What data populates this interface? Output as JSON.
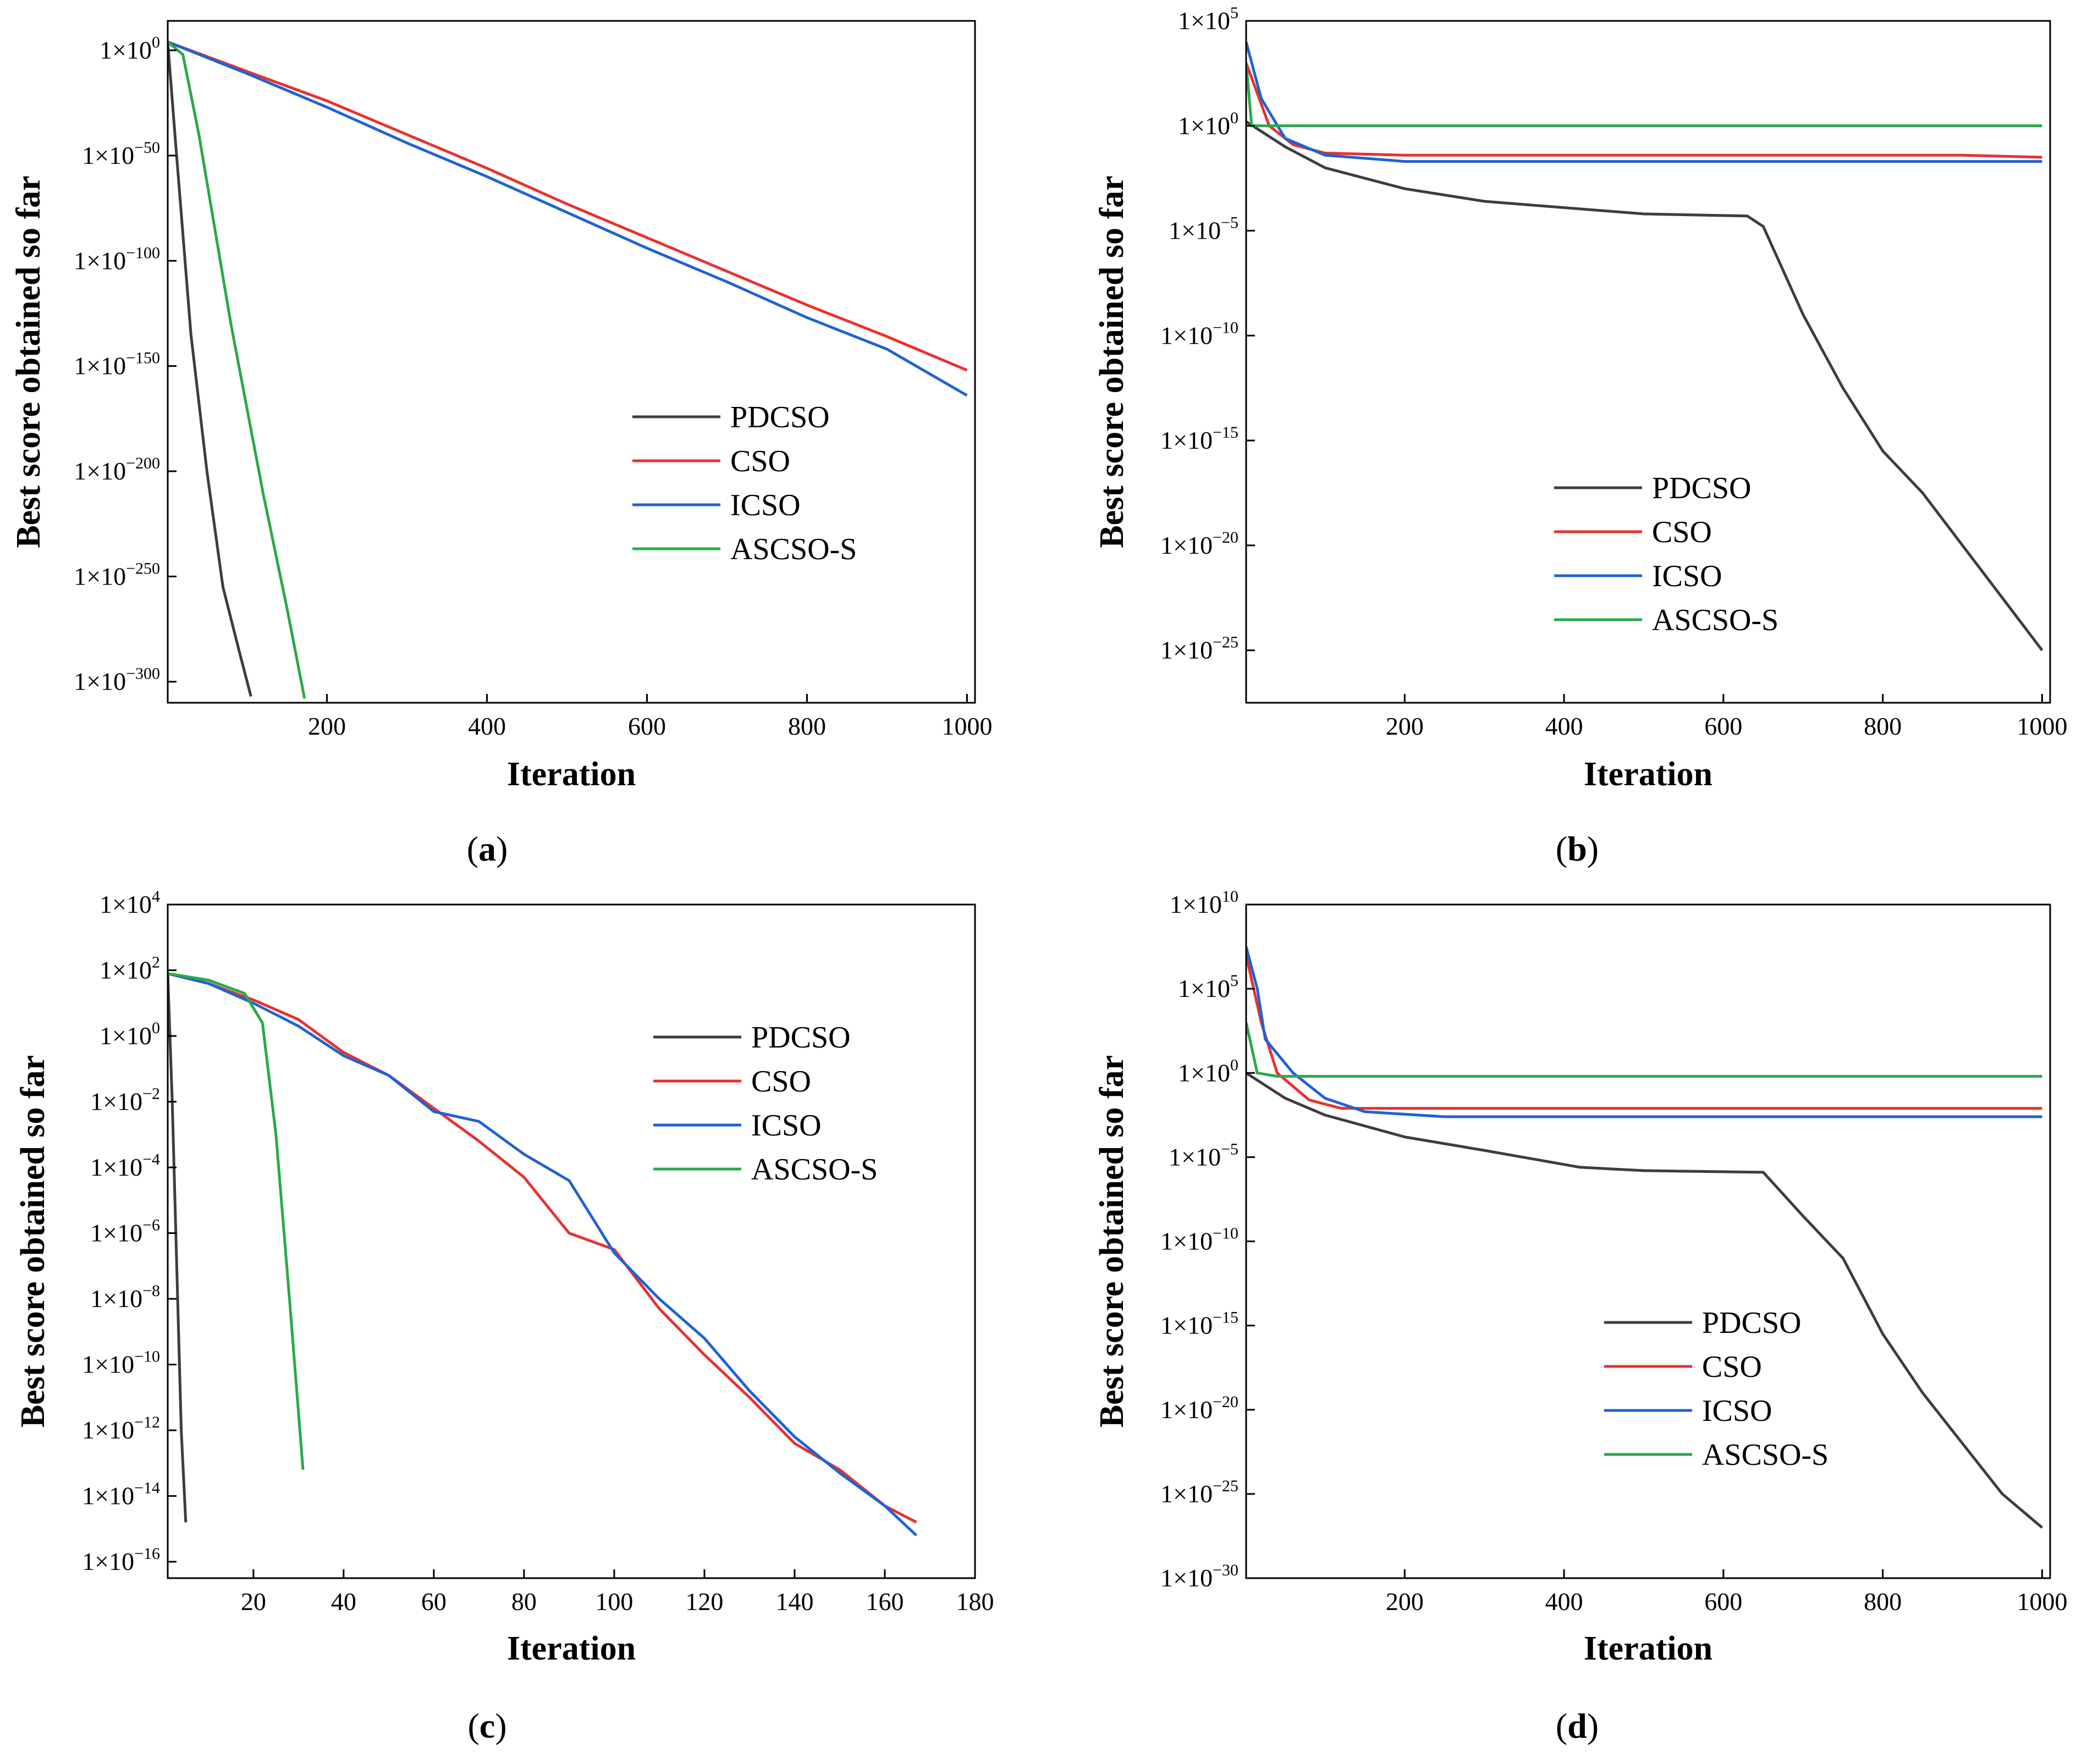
{
  "colors": {
    "PDCSO": "#3d3d3d",
    "CSO": "#e8312f",
    "ICSO": "#1f62d4",
    "ASCSO-S": "#2aa84a"
  },
  "chart_data": [
    {
      "id": "a",
      "type": "line",
      "caption_open": "(",
      "caption_letter": "a",
      "caption_close": ")",
      "xlabel": "Iteration",
      "ylabel": "Best score obtained so far",
      "xlim": [
        1,
        1010
      ],
      "ylim_log10": [
        -310,
        14
      ],
      "xticks": [
        200,
        400,
        600,
        800,
        1000
      ],
      "xtick_labels": [
        "200",
        "400",
        "600",
        "800",
        "1000"
      ],
      "yticks_log10": [
        0,
        -50,
        -100,
        -150,
        -200,
        -250,
        -300
      ],
      "ytick_labels": [
        "0",
        "−50",
        "−100",
        "−150",
        "−200",
        "−250",
        "−300"
      ],
      "tick_base": "1×10",
      "legend": [
        "PDCSO",
        "CSO",
        "ICSO",
        "ASCSO-S"
      ],
      "series": [
        {
          "name": "PDCSO",
          "points": [
            [
              1,
              4
            ],
            [
              10,
              -40
            ],
            [
              30,
              -135
            ],
            [
              50,
              -200
            ],
            [
              70,
              -255
            ],
            [
              90,
              -285
            ],
            [
              105,
              -307
            ]
          ]
        },
        {
          "name": "CSO",
          "points": [
            [
              1,
              4
            ],
            [
              100,
              -10
            ],
            [
              200,
              -24
            ],
            [
              300,
              -40
            ],
            [
              400,
              -56
            ],
            [
              500,
              -73
            ],
            [
              600,
              -89
            ],
            [
              700,
              -105
            ],
            [
              800,
              -121
            ],
            [
              900,
              -136
            ],
            [
              1000,
              -152
            ]
          ]
        },
        {
          "name": "ICSO",
          "points": [
            [
              1,
              4
            ],
            [
              100,
              -11
            ],
            [
              200,
              -27
            ],
            [
              300,
              -44
            ],
            [
              400,
              -60
            ],
            [
              500,
              -77
            ],
            [
              600,
              -94
            ],
            [
              700,
              -110
            ],
            [
              800,
              -127
            ],
            [
              900,
              -142
            ],
            [
              1000,
              -164
            ]
          ]
        },
        {
          "name": "ASCSO-S",
          "points": [
            [
              1,
              4
            ],
            [
              20,
              -2
            ],
            [
              40,
              -40
            ],
            [
              80,
              -130
            ],
            [
              120,
              -210
            ],
            [
              150,
              -265
            ],
            [
              172,
              -308
            ]
          ]
        }
      ]
    },
    {
      "id": "b",
      "type": "line",
      "caption_open": "(",
      "caption_letter": "b",
      "caption_close": ")",
      "xlabel": "Iteration",
      "ylabel": "Best score obtained so far",
      "xlim": [
        1,
        1010
      ],
      "ylim_log10": [
        -27.5,
        5
      ],
      "xticks": [
        200,
        400,
        600,
        800,
        1000
      ],
      "xtick_labels": [
        "200",
        "400",
        "600",
        "800",
        "1000"
      ],
      "yticks_log10": [
        5,
        0,
        -5,
        -10,
        -15,
        -20,
        -25
      ],
      "ytick_labels": [
        "5",
        "0",
        "−5",
        "−10",
        "−15",
        "−20",
        "−25"
      ],
      "tick_base": "1×10",
      "legend": [
        "PDCSO",
        "CSO",
        "ICSO",
        "ASCSO-S"
      ],
      "series": [
        {
          "name": "PDCSO",
          "points": [
            [
              1,
              0.2
            ],
            [
              50,
              -1
            ],
            [
              100,
              -2
            ],
            [
              200,
              -3
            ],
            [
              300,
              -3.6
            ],
            [
              400,
              -3.9
            ],
            [
              500,
              -4.2
            ],
            [
              630,
              -4.3
            ],
            [
              650,
              -4.8
            ],
            [
              700,
              -9
            ],
            [
              750,
              -12.5
            ],
            [
              800,
              -15.5
            ],
            [
              850,
              -17.5
            ],
            [
              900,
              -20
            ],
            [
              950,
              -22.5
            ],
            [
              1000,
              -25
            ]
          ]
        },
        {
          "name": "CSO",
          "points": [
            [
              1,
              3
            ],
            [
              30,
              0
            ],
            [
              60,
              -0.9
            ],
            [
              100,
              -1.3
            ],
            [
              200,
              -1.4
            ],
            [
              900,
              -1.4
            ],
            [
              1000,
              -1.5
            ]
          ]
        },
        {
          "name": "ICSO",
          "points": [
            [
              1,
              4
            ],
            [
              20,
              1.3
            ],
            [
              50,
              -0.6
            ],
            [
              100,
              -1.4
            ],
            [
              200,
              -1.7
            ],
            [
              1000,
              -1.7
            ]
          ]
        },
        {
          "name": "ASCSO-S",
          "points": [
            [
              1,
              3
            ],
            [
              8,
              0
            ],
            [
              20,
              0
            ],
            [
              1000,
              0
            ]
          ]
        }
      ]
    },
    {
      "id": "c",
      "type": "line",
      "caption_open": "(",
      "caption_letter": "c",
      "caption_close": ")",
      "xlabel": "Iteration",
      "ylabel": "Best score obtained so far",
      "xlim": [
        1,
        180
      ],
      "ylim_log10": [
        -16.5,
        4
      ],
      "xticks": [
        20,
        40,
        60,
        80,
        100,
        120,
        140,
        160,
        180
      ],
      "xtick_labels": [
        "20",
        "40",
        "60",
        "80",
        "100",
        "120",
        "140",
        "160",
        "180"
      ],
      "yticks_log10": [
        4,
        2,
        0,
        -2,
        -4,
        -6,
        -8,
        -10,
        -12,
        -14,
        -16
      ],
      "ytick_labels": [
        "4",
        "2",
        "0",
        "−2",
        "−4",
        "−6",
        "−8",
        "−10",
        "−12",
        "−14",
        "−16"
      ],
      "tick_base": "1×10",
      "legend": [
        "PDCSO",
        "CSO",
        "ICSO",
        "ASCSO-S"
      ],
      "series": [
        {
          "name": "PDCSO",
          "points": [
            [
              1,
              1.9
            ],
            [
              2,
              -2
            ],
            [
              3,
              -7
            ],
            [
              4,
              -12
            ],
            [
              5,
              -14.8
            ]
          ]
        },
        {
          "name": "CSO",
          "points": [
            [
              1,
              1.9
            ],
            [
              10,
              1.6
            ],
            [
              20,
              1.1
            ],
            [
              30,
              0.5
            ],
            [
              40,
              -0.5
            ],
            [
              50,
              -1.2
            ],
            [
              60,
              -2.2
            ],
            [
              70,
              -3.2
            ],
            [
              80,
              -4.3
            ],
            [
              90,
              -6
            ],
            [
              100,
              -6.5
            ],
            [
              110,
              -8.3
            ],
            [
              120,
              -9.7
            ],
            [
              130,
              -11
            ],
            [
              140,
              -12.4
            ],
            [
              150,
              -13.2
            ],
            [
              160,
              -14.3
            ],
            [
              167,
              -14.8
            ]
          ]
        },
        {
          "name": "ICSO",
          "points": [
            [
              1,
              1.9
            ],
            [
              10,
              1.6
            ],
            [
              20,
              1.0
            ],
            [
              30,
              0.3
            ],
            [
              40,
              -0.6
            ],
            [
              50,
              -1.2
            ],
            [
              60,
              -2.3
            ],
            [
              70,
              -2.6
            ],
            [
              80,
              -3.6
            ],
            [
              90,
              -4.4
            ],
            [
              100,
              -6.6
            ],
            [
              110,
              -8
            ],
            [
              120,
              -9.2
            ],
            [
              130,
              -10.8
            ],
            [
              140,
              -12.2
            ],
            [
              150,
              -13.3
            ],
            [
              160,
              -14.3
            ],
            [
              167,
              -15.2
            ]
          ]
        },
        {
          "name": "ASCSO-S",
          "points": [
            [
              1,
              1.9
            ],
            [
              10,
              1.7
            ],
            [
              18,
              1.3
            ],
            [
              22,
              0.4
            ],
            [
              25,
              -3
            ],
            [
              28,
              -8
            ],
            [
              31,
              -13.2
            ]
          ]
        }
      ]
    },
    {
      "id": "d",
      "type": "line",
      "caption_open": "(",
      "caption_letter": "d",
      "caption_close": ")",
      "xlabel": "Iteration",
      "ylabel": "Best score obtained so far",
      "xlim": [
        1,
        1010
      ],
      "ylim_log10": [
        -30,
        10
      ],
      "xticks": [
        200,
        400,
        600,
        800,
        1000
      ],
      "xtick_labels": [
        "200",
        "400",
        "600",
        "800",
        "1000"
      ],
      "yticks_log10": [
        10,
        5,
        0,
        -5,
        -10,
        -15,
        -20,
        -25,
        -30
      ],
      "ytick_labels": [
        "10",
        "5",
        "0",
        "−5",
        "−10",
        "−15",
        "−20",
        "−25",
        "−30"
      ],
      "tick_base": "1×10",
      "legend": [
        "PDCSO",
        "CSO",
        "ICSO",
        "ASCSO-S"
      ],
      "series": [
        {
          "name": "PDCSO",
          "points": [
            [
              1,
              0
            ],
            [
              50,
              -1.5
            ],
            [
              100,
              -2.5
            ],
            [
              200,
              -3.8
            ],
            [
              300,
              -4.6
            ],
            [
              420,
              -5.6
            ],
            [
              500,
              -5.8
            ],
            [
              650,
              -5.9
            ],
            [
              700,
              -8.5
            ],
            [
              750,
              -11
            ],
            [
              800,
              -15.5
            ],
            [
              850,
              -19
            ],
            [
              900,
              -22
            ],
            [
              950,
              -25
            ],
            [
              1000,
              -27
            ]
          ]
        },
        {
          "name": "CSO",
          "points": [
            [
              1,
              7
            ],
            [
              20,
              3
            ],
            [
              40,
              0
            ],
            [
              80,
              -1.6
            ],
            [
              120,
              -2.1
            ],
            [
              200,
              -2.1
            ],
            [
              1000,
              -2.1
            ]
          ]
        },
        {
          "name": "ICSO",
          "points": [
            [
              1,
              7.5
            ],
            [
              15,
              5
            ],
            [
              25,
              2
            ],
            [
              60,
              0
            ],
            [
              100,
              -1.5
            ],
            [
              150,
              -2.3
            ],
            [
              250,
              -2.6
            ],
            [
              1000,
              -2.6
            ]
          ]
        },
        {
          "name": "ASCSO-S",
          "points": [
            [
              1,
              3
            ],
            [
              15,
              0
            ],
            [
              40,
              -0.2
            ],
            [
              1000,
              -0.2
            ]
          ]
        }
      ]
    }
  ]
}
